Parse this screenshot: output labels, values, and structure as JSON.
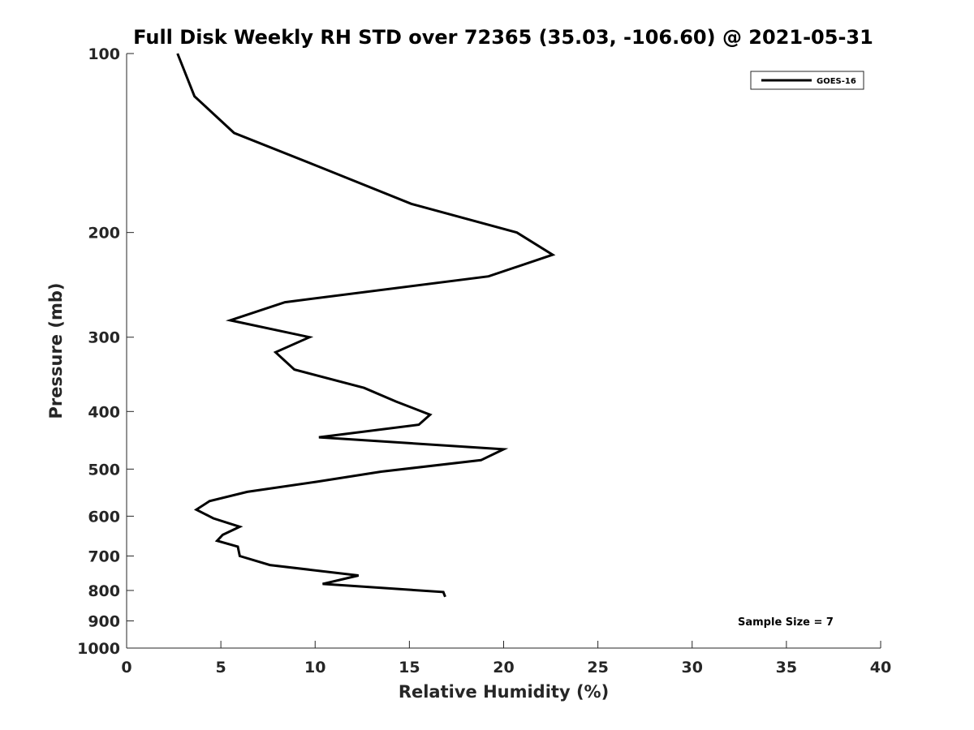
{
  "chart_data": {
    "type": "line",
    "title": "Full Disk Weekly RH STD over 72365 (35.03, -106.60) @ 2021-05-31",
    "xlabel": "Relative Humidity (%)",
    "ylabel": "Pressure (mb)",
    "xlim": [
      0,
      40
    ],
    "ylim": [
      100,
      1000
    ],
    "yscale": "log",
    "y_inverted": true,
    "grid": false,
    "legend_position": "top-right",
    "x_ticks": [
      "0",
      "5",
      "10",
      "15",
      "20",
      "25",
      "30",
      "35",
      "40"
    ],
    "y_ticks": [
      "100",
      "200",
      "300",
      "400",
      "500",
      "600",
      "700",
      "800",
      "900",
      "1000"
    ],
    "annotation": "Sample Size = 7",
    "series": [
      {
        "name": "GOES-16",
        "color": "#000000",
        "points": [
          [
            2.7,
            100
          ],
          [
            3.6,
            118
          ],
          [
            5.7,
            136
          ],
          [
            10.2,
            155
          ],
          [
            15.1,
            179
          ],
          [
            20.7,
            200
          ],
          [
            22.6,
            218
          ],
          [
            19.2,
            237
          ],
          [
            8.4,
            262
          ],
          [
            5.5,
            281
          ],
          [
            9.7,
            300
          ],
          [
            7.9,
            318
          ],
          [
            8.9,
            340
          ],
          [
            12.6,
            365
          ],
          [
            14.3,
            385
          ],
          [
            16.1,
            405
          ],
          [
            15.5,
            421
          ],
          [
            10.2,
            442
          ],
          [
            20.0,
            463
          ],
          [
            18.8,
            483
          ],
          [
            13.5,
            505
          ],
          [
            10.1,
            525
          ],
          [
            6.4,
            546
          ],
          [
            4.4,
            566
          ],
          [
            3.7,
            585
          ],
          [
            4.6,
            605
          ],
          [
            6.0,
            625
          ],
          [
            5.1,
            645
          ],
          [
            4.8,
            660
          ],
          [
            5.9,
            675
          ],
          [
            6.0,
            700
          ],
          [
            7.6,
            725
          ],
          [
            12.3,
            755
          ],
          [
            10.4,
            780
          ],
          [
            16.8,
            805
          ],
          [
            16.9,
            820
          ]
        ]
      }
    ]
  }
}
